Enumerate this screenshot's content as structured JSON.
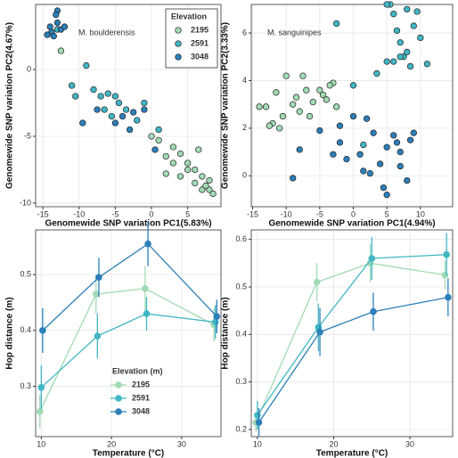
{
  "chart_data": [
    {
      "type": "scatter",
      "annotation": "M. boulderensis",
      "x_label": "Genomewide SNP variation PC1(5.83%)",
      "y_label": "Genomewide SNP variation PC2(4.67%)",
      "xlim": [
        -16,
        9.6
      ],
      "ylim": [
        -10.27,
        4.87
      ],
      "xticks": [
        -15,
        -10,
        -5,
        0,
        5
      ],
      "yticks": [
        -10,
        -5,
        0
      ],
      "grid": true,
      "legend_title": "Elevation",
      "legend_position": "top-right",
      "series": [
        {
          "name": "2195",
          "color": "#a1dab4",
          "x": [
            -12.5,
            0,
            1,
            2,
            3,
            4,
            5,
            5,
            6,
            6,
            7,
            7,
            8,
            8,
            8.5,
            4,
            2,
            7.5,
            6.5,
            3
          ],
          "values": [
            1.4,
            -5,
            -5.3,
            -6.5,
            -7,
            -6.3,
            -7,
            -7.5,
            -7.5,
            -8.5,
            -8,
            -9,
            -8.3,
            -9,
            -9.3,
            -8,
            -7.8,
            -8.7,
            -6,
            -5.8
          ]
        },
        {
          "name": "2591",
          "color": "#41b6c4",
          "x": [
            -13,
            -9,
            -8,
            -11,
            -10.5,
            -6,
            -5,
            -4.5,
            -6.5,
            -3.5,
            -2,
            -1,
            1,
            -7,
            -5.5
          ],
          "values": [
            3,
            0.3,
            -1.5,
            -1.2,
            -2,
            -1.8,
            -2,
            -2.5,
            -3,
            -3,
            -3.8,
            -2.5,
            -4.5,
            -2,
            -3.5
          ]
        },
        {
          "name": "3048",
          "color": "#2c7fb8",
          "x": [
            -13,
            -13.2,
            -14,
            -13.8,
            -14.4,
            -13,
            -12.5,
            -12,
            -13.5,
            -9.5,
            -7.5,
            -4,
            -2.5,
            -1,
            0.5,
            -5,
            -3
          ],
          "values": [
            4.4,
            4.1,
            3.2,
            2.8,
            2.6,
            3.5,
            3,
            3.2,
            2.5,
            -4,
            -3,
            -3.5,
            -3.2,
            -3,
            -6,
            -4,
            -4.5
          ]
        }
      ]
    },
    {
      "type": "scatter",
      "annotation": "M. sanguinipes",
      "x_label": "Genomewide SNP variation PC1(4.94%)",
      "y_label": "Genomewide SNP variation PC2(3.33%)",
      "xlim": [
        -15.2,
        14.8
      ],
      "ylim": [
        -1.3,
        7.2
      ],
      "xticks": [
        -15,
        -10,
        -5,
        0,
        5,
        10
      ],
      "yticks": [
        0,
        2,
        4,
        6
      ],
      "grid": true,
      "series": [
        {
          "name": "2195",
          "color": "#a1dab4",
          "x": [
            -14,
            -13,
            -12,
            -11,
            -10.5,
            -10,
            -9,
            -8,
            -7.5,
            -7,
            -6,
            -5,
            -4.5,
            -4,
            -3,
            -2.5,
            -11.5,
            -12.5,
            -8.5,
            -6.5,
            -3.5
          ],
          "values": [
            2.9,
            2.9,
            2.2,
            2,
            2.5,
            4.2,
            3,
            2.7,
            4.2,
            3.6,
            3.1,
            3.6,
            3.4,
            3.2,
            3.9,
            2.9,
            3.5,
            2.1,
            3.3,
            2.5,
            3.8
          ]
        },
        {
          "name": "2591",
          "color": "#41b6c4",
          "x": [
            -2.5,
            0,
            1.5,
            3.5,
            5,
            5.5,
            6,
            6.5,
            7,
            7.5,
            8,
            8.5,
            9,
            9.5,
            10,
            11,
            6,
            8,
            5,
            7
          ],
          "values": [
            6.4,
            3.8,
            1.3,
            4.3,
            4.8,
            7.2,
            6.8,
            6.1,
            5.6,
            5,
            7,
            4.6,
            6.3,
            6.9,
            5.8,
            4.7,
            4.8,
            5.2,
            7.2,
            5
          ]
        },
        {
          "name": "3048",
          "color": "#2c7fb8",
          "x": [
            -9,
            -8,
            -3,
            -2,
            -2,
            -1,
            0,
            1,
            1.5,
            2,
            3,
            4,
            4.5,
            5,
            5,
            6,
            6.5,
            7,
            7,
            8,
            8.5,
            9,
            -5,
            2.5
          ],
          "values": [
            -0.1,
            1.1,
            0.9,
            1.4,
            2.1,
            0.7,
            2.5,
            0.9,
            0.2,
            2.4,
            1.8,
            0.5,
            -0.5,
            -0.8,
            1.2,
            1.7,
            1.4,
            0.4,
            1,
            -0.2,
            1.5,
            1.8,
            1.9,
            0.1
          ]
        }
      ]
    },
    {
      "type": "line",
      "x_label": "Temperature (°C)",
      "y_label": "Hop distance (m)",
      "xlim": [
        9.2,
        35.6
      ],
      "ylim": [
        0.21,
        0.58
      ],
      "xticks": [
        10,
        20,
        30
      ],
      "yticks": [
        0.3,
        0.4,
        0.5
      ],
      "grid": true,
      "legend_title": "Elevation (m)",
      "legend_position": "bottom-center",
      "series": [
        {
          "name": "2195",
          "color": "#a1dab4",
          "x": [
            9.8,
            17.8,
            24.8,
            34.6
          ],
          "values": [
            0.255,
            0.465,
            0.475,
            0.41
          ],
          "errors": [
            0.03,
            0.035,
            0.04,
            0.03
          ]
        },
        {
          "name": "2591",
          "color": "#41b6c4",
          "x": [
            10,
            18,
            25,
            34.8
          ],
          "values": [
            0.298,
            0.39,
            0.43,
            0.415
          ],
          "errors": [
            0.04,
            0.04,
            0.03,
            0.03
          ]
        },
        {
          "name": "3048",
          "color": "#2c7fb8",
          "x": [
            10.2,
            18.2,
            25.2,
            35
          ],
          "values": [
            0.4,
            0.495,
            0.555,
            0.425
          ],
          "errors": [
            0.04,
            0.035,
            0.04,
            0.03
          ]
        }
      ]
    },
    {
      "type": "line",
      "x_label": "Temperature (°C)",
      "y_label": "Hop distance (m)",
      "xlim": [
        9.2,
        35.6
      ],
      "ylim": [
        0.185,
        0.62
      ],
      "xticks": [
        10,
        20,
        30
      ],
      "yticks": [
        0.2,
        0.3,
        0.4,
        0.5,
        0.6
      ],
      "grid": true,
      "series": [
        {
          "name": "2195",
          "color": "#a1dab4",
          "x": [
            9.8,
            17.8,
            24.8,
            34.6
          ],
          "values": [
            0.215,
            0.51,
            0.55,
            0.525
          ],
          "errors": [
            0.02,
            0.04,
            0.04,
            0.03
          ]
        },
        {
          "name": "2591",
          "color": "#41b6c4",
          "x": [
            10,
            18,
            25,
            34.8
          ],
          "values": [
            0.23,
            0.415,
            0.56,
            0.568
          ],
          "errors": [
            0.03,
            0.05,
            0.045,
            0.045
          ]
        },
        {
          "name": "3048",
          "color": "#2c7fb8",
          "x": [
            10.2,
            18.2,
            25.2,
            35
          ],
          "values": [
            0.215,
            0.405,
            0.448,
            0.478
          ],
          "errors": [
            0.03,
            0.05,
            0.04,
            0.04
          ]
        }
      ]
    }
  ]
}
